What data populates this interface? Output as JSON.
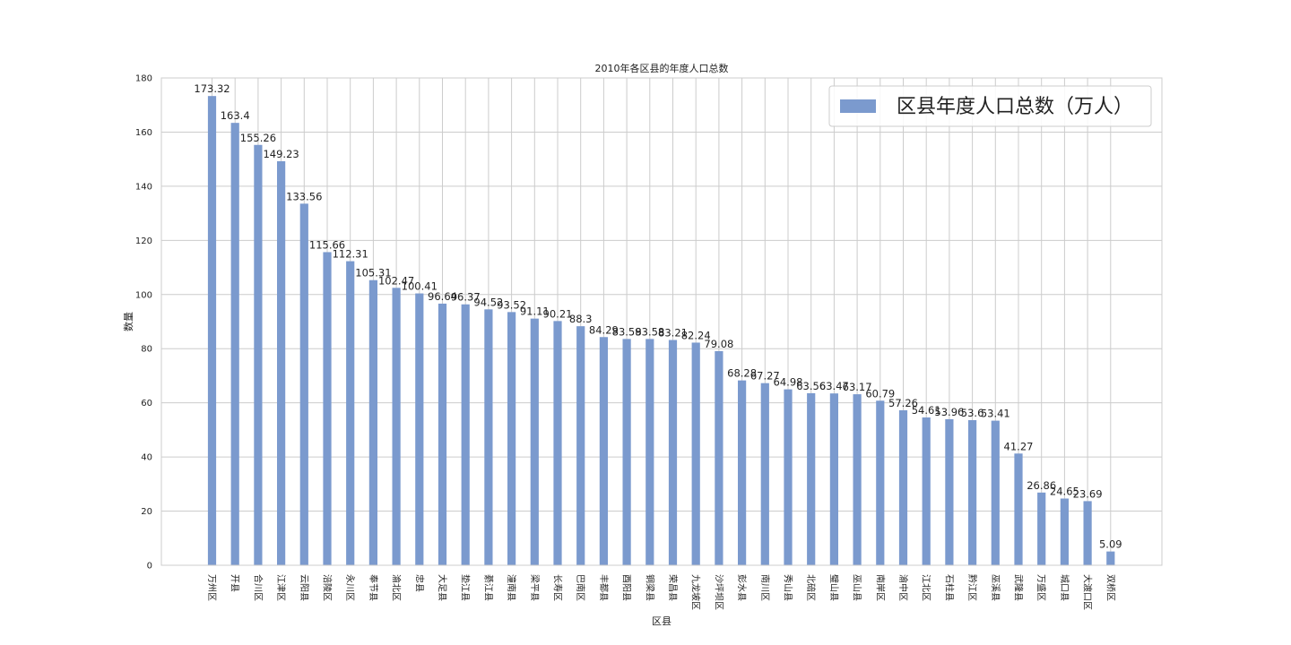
{
  "chart_data": {
    "type": "bar",
    "title": "2010年各区县的年度人口总数",
    "xlabel": "区县",
    "ylabel": "数量",
    "ylim": [
      0,
      180
    ],
    "yticks": [
      0,
      20,
      40,
      60,
      80,
      100,
      120,
      140,
      160,
      180
    ],
    "grid": true,
    "legend_position": "top-right",
    "bar_color": "#7b9ace",
    "series": [
      {
        "name": "区县年度人口总数（万人）",
        "values": [
          173.32,
          163.4,
          155.26,
          149.23,
          133.56,
          115.66,
          112.31,
          105.31,
          102.47,
          100.41,
          96.64,
          96.37,
          94.52,
          93.52,
          91.11,
          90.21,
          88.3,
          84.29,
          83.59,
          83.58,
          83.21,
          82.24,
          79.08,
          68.28,
          67.27,
          64.98,
          63.56,
          63.47,
          63.17,
          60.79,
          57.26,
          54.61,
          53.96,
          53.6,
          53.41,
          41.27,
          26.86,
          24.65,
          23.69,
          5.09
        ]
      }
    ],
    "categories": [
      "万州区",
      "开县",
      "合川区",
      "江津区",
      "云阳县",
      "涪陵区",
      "永川区",
      "奉节县",
      "渝北区",
      "忠县",
      "大足县",
      "垫江县",
      "綦江县",
      "潼南县",
      "梁平县",
      "长寿区",
      "巴南区",
      "丰都县",
      "酉阳县",
      "铜梁县",
      "荣昌县",
      "九龙坡区",
      "沙坪坝区",
      "彭水县",
      "南川区",
      "秀山县",
      "北碚区",
      "璧山县",
      "巫山县",
      "南岸区",
      "渝中区",
      "江北区",
      "石柱县",
      "黔江区",
      "巫溪县",
      "武隆县",
      "万盛区",
      "城口县",
      "大渡口区",
      "双桥区"
    ]
  }
}
